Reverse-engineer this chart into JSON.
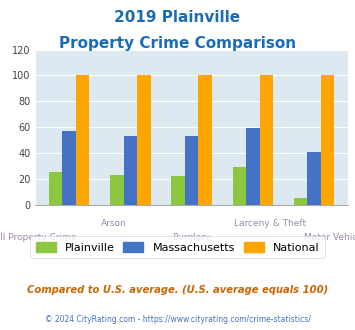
{
  "title_line1": "2019 Plainville",
  "title_line2": "Property Crime Comparison",
  "categories": [
    "All Property Crime",
    "Arson",
    "Burglary",
    "Larceny & Theft",
    "Motor Vehicle Theft"
  ],
  "plainville": [
    25,
    23,
    22,
    29,
    5
  ],
  "massachusetts": [
    57,
    53,
    53,
    59,
    41
  ],
  "national": [
    100,
    100,
    100,
    100,
    100
  ],
  "color_plainville": "#8dc63f",
  "color_massachusetts": "#4472c4",
  "color_national": "#ffa500",
  "ylim": [
    0,
    120
  ],
  "yticks": [
    0,
    20,
    40,
    60,
    80,
    100,
    120
  ],
  "xlabel_upper": [
    "",
    "Arson",
    "",
    "Larceny & Theft",
    ""
  ],
  "xlabel_lower": [
    "All Property Crime",
    "",
    "Burglary",
    "",
    "Motor Vehicle Theft"
  ],
  "xlabel_color": "#9b8aaa",
  "title_color": "#1a6db5",
  "background_color": "#dce9f0",
  "note_text": "Compared to U.S. average. (U.S. average equals 100)",
  "footer_text": "© 2024 CityRating.com - https://www.cityrating.com/crime-statistics/",
  "note_color": "#cc6600",
  "footer_color": "#4472c4",
  "bar_width": 0.22
}
